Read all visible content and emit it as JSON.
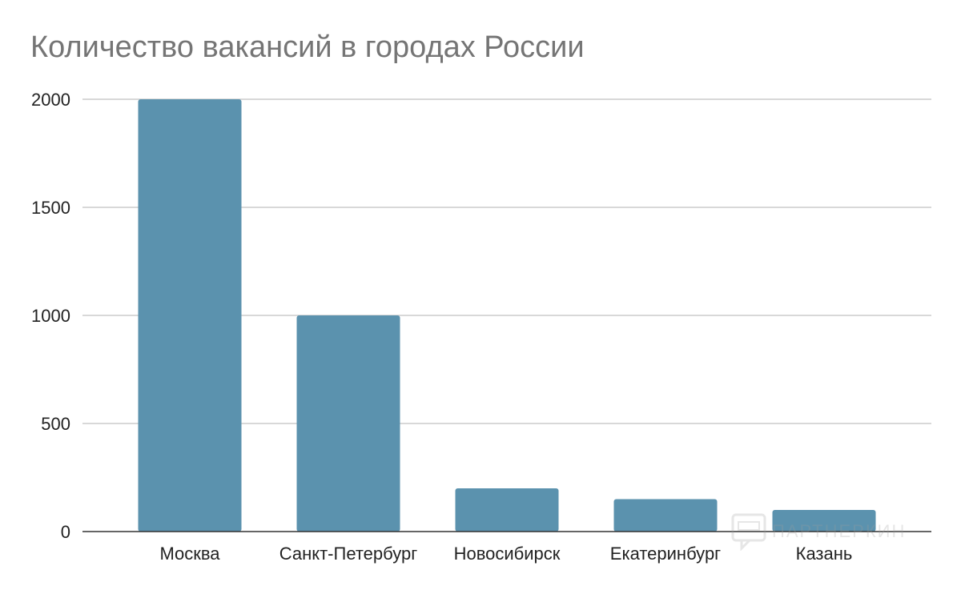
{
  "chart_data": {
    "type": "bar",
    "title": "Количество вакансий в городах России",
    "xlabel": "",
    "ylabel": "",
    "categories": [
      "Москва",
      "Санкт-Петербург",
      "Новосибирск",
      "Екатеринбург",
      "Казань"
    ],
    "values": [
      2000,
      1000,
      200,
      150,
      100
    ],
    "ylim": [
      0,
      2000
    ],
    "yticks": [
      0,
      500,
      1000,
      1500,
      2000
    ],
    "grid": true,
    "legend": "none",
    "bar_color": "#5b92ae"
  },
  "watermark": {
    "text": "ПАРТНЕРКИН",
    "icon": "speech-bubble-icon"
  }
}
